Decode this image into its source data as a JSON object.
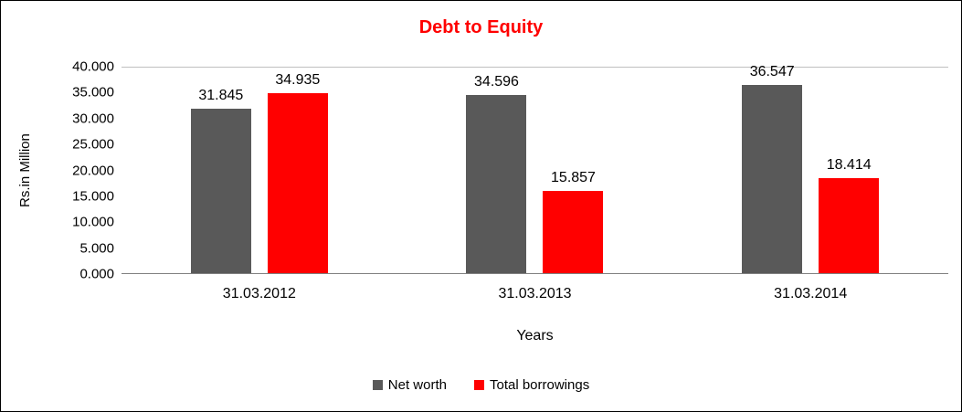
{
  "chart_data": {
    "type": "bar",
    "title": "Debt to Equity",
    "title_color": "#ff0000",
    "categories": [
      "31.03.2012",
      "31.03.2013",
      "31.03.2014"
    ],
    "series": [
      {
        "name": "Net worth",
        "color": "#595959",
        "values": [
          31.845,
          34.596,
          36.547
        ],
        "labels": [
          "31.845",
          "34.596",
          "36.547"
        ]
      },
      {
        "name": "Total borrowings",
        "color": "#ff0000",
        "values": [
          34.935,
          15.857,
          18.414
        ],
        "labels": [
          "34.935",
          "15.857",
          "18.414"
        ]
      }
    ],
    "xlabel": "Years",
    "ylabel": "Rs.in Million",
    "ylim": [
      0,
      40
    ],
    "yticks": [
      "0.000",
      "5.000",
      "10.000",
      "15.000",
      "20.000",
      "25.000",
      "30.000",
      "35.000",
      "40.000"
    ],
    "grid": "single horizontal gridline at top (40.000)",
    "legend_position": "bottom"
  }
}
